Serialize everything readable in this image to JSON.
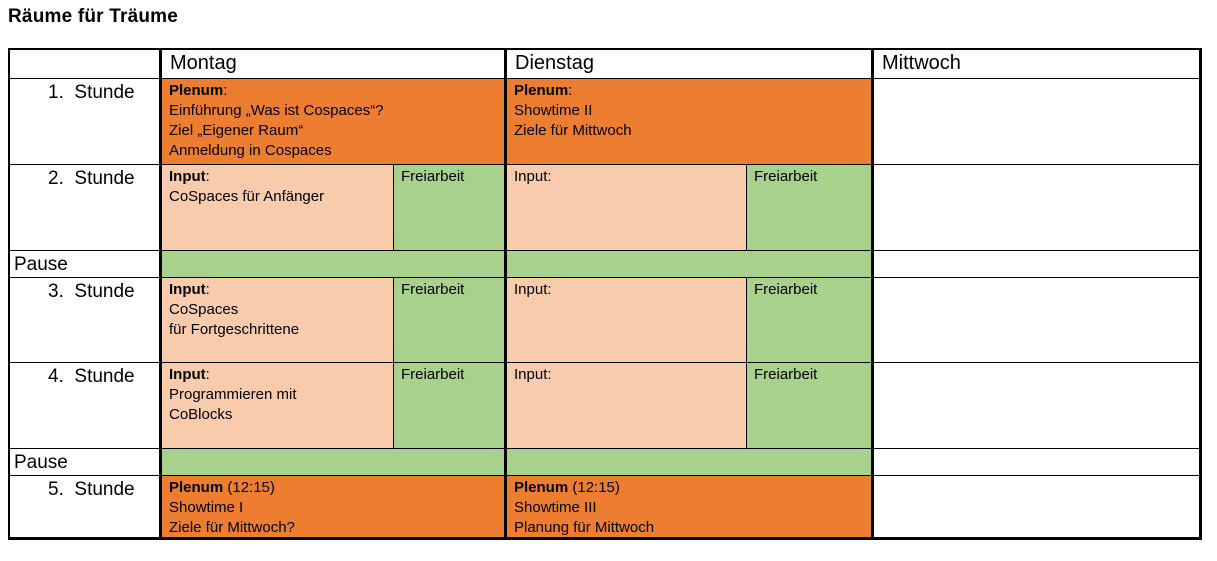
{
  "title": "Räume für Träume",
  "colors": {
    "plenum_orange": "#ED7D31",
    "input_peach": "#F8CBAD",
    "free_green": "#A9D18E",
    "border_black": "#000000"
  },
  "header": {
    "monday": "Montag",
    "tuesday": "Dienstag",
    "wednesday": "Mittwoch"
  },
  "rows": {
    "r1": {
      "label": "1.  Stunde",
      "monday": {
        "bold": "Plenum",
        "rest": ":",
        "lines": [
          "Einführung „Was ist Cospaces“?",
          "Ziel „Eigener Raum“",
          "Anmeldung in Cospaces"
        ]
      },
      "tuesday": {
        "bold": "Plenum",
        "rest": ":",
        "lines": [
          "Showtime II",
          "Ziele für Mittwoch"
        ]
      }
    },
    "r2": {
      "label": "2.  Stunde",
      "monday": {
        "bold": "Input",
        "rest": ":",
        "lines": [
          "CoSpaces für Anfänger"
        ],
        "free": "Freiarbeit"
      },
      "tuesday": {
        "rest": "Input:",
        "free": "Freiarbeit"
      }
    },
    "pause1": {
      "label": "Pause"
    },
    "r3": {
      "label": "3.  Stunde",
      "monday": {
        "bold": "Input",
        "rest": ":",
        "lines": [
          "CoSpaces",
          "für Fortgeschrittene"
        ],
        "free": "Freiarbeit"
      },
      "tuesday": {
        "rest": "Input:",
        "free": "Freiarbeit"
      }
    },
    "r4": {
      "label": "4.  Stunde",
      "monday": {
        "bold": "Input",
        "rest": ":",
        "lines": [
          "Programmieren mit",
          "CoBlocks"
        ],
        "free": "Freiarbeit"
      },
      "tuesday": {
        "rest": "Input:",
        "free": "Freiarbeit"
      }
    },
    "pause2": {
      "label": "Pause"
    },
    "r5": {
      "label": "5.  Stunde",
      "monday": {
        "bold": "Plenum",
        "rest": " (12:15)",
        "lines": [
          "Showtime I",
          "Ziele für Mittwoch?"
        ]
      },
      "tuesday": {
        "bold": "Plenum",
        "rest": " (12:15)",
        "lines": [
          "Showtime III",
          "Planung für Mittwoch"
        ]
      }
    }
  }
}
